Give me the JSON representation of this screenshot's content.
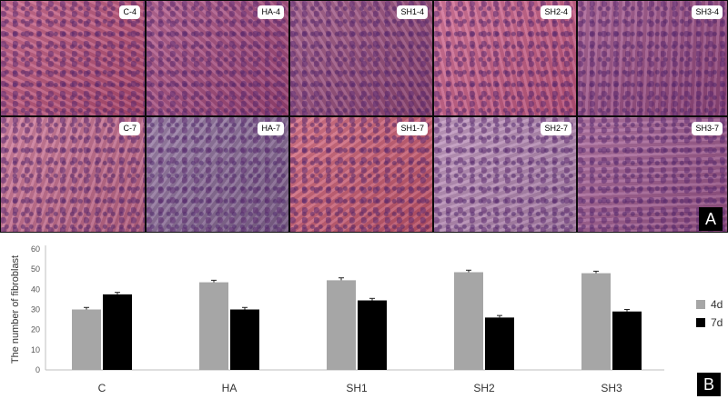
{
  "panel_a": {
    "letter": "A",
    "images": [
      {
        "label": "C-4",
        "tone": "#c0507a"
      },
      {
        "label": "HA-4",
        "tone": "#a9487e"
      },
      {
        "label": "SH1-4",
        "tone": "#9a4a7c"
      },
      {
        "label": "SH2-4",
        "tone": "#cc5a86"
      },
      {
        "label": "SH3-4",
        "tone": "#9c4a84"
      },
      {
        "label": "C-7",
        "tone": "#c96a8e"
      },
      {
        "label": "HA-7",
        "tone": "#8a6a98"
      },
      {
        "label": "SH1-7",
        "tone": "#cf5a72"
      },
      {
        "label": "SH2-7",
        "tone": "#b889b6"
      },
      {
        "label": "SH3-7",
        "tone": "#a25890"
      }
    ]
  },
  "panel_b": {
    "letter": "B",
    "colors": {
      "4d": "#a6a6a6",
      "7d": "#000000",
      "error": "#222222"
    }
  },
  "chart_data": {
    "type": "bar",
    "categories": [
      "C",
      "HA",
      "SH1",
      "SH2",
      "SH3"
    ],
    "series": [
      {
        "name": "4d",
        "values": [
          30,
          43.5,
          44.5,
          48.5,
          48
        ],
        "errors": [
          1,
          1,
          1.2,
          1,
          1
        ]
      },
      {
        "name": "7d",
        "values": [
          37.5,
          30,
          34.5,
          26,
          29
        ],
        "errors": [
          1,
          1,
          1,
          1,
          1
        ]
      }
    ],
    "ylabel": "The number of fibroblast",
    "xlabel": "",
    "ylim": [
      0,
      60
    ],
    "yticks": [
      0,
      10,
      20,
      30,
      40,
      50,
      60
    ],
    "grid": false,
    "legend": "right"
  }
}
